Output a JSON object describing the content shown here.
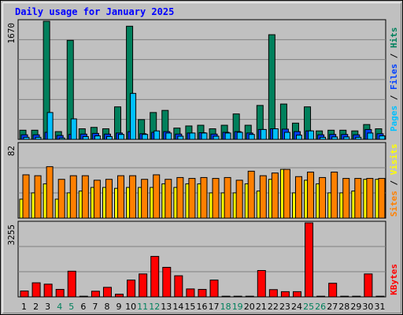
{
  "title": "Daily usage for January 2025",
  "colors": {
    "hits": "#00805c",
    "files": "#0040ff",
    "pages": "#00c0ff",
    "visits": "#ff8000",
    "sites": "#ffff00",
    "kbytes": "#ff0000",
    "title": "#0000ff",
    "grid": "#808080",
    "panel": "#c0c0c0",
    "weekend_day": "#00805c",
    "weekday_day": "#000000"
  },
  "side_labels": {
    "top": [
      {
        "text": "Pages",
        "color": "#00c0ff"
      },
      {
        "text": " / ",
        "color": "#000000"
      },
      {
        "text": "Files",
        "color": "#0040ff"
      },
      {
        "text": " / ",
        "color": "#000000"
      },
      {
        "text": "Hits",
        "color": "#00805c"
      }
    ],
    "middle": [
      {
        "text": "Sites",
        "color": "#ff8000"
      },
      {
        "text": " / ",
        "color": "#000000"
      },
      {
        "text": "Visits",
        "color": "#ffff00"
      }
    ],
    "bottom": [
      {
        "text": "KBytes",
        "color": "#ff0000"
      }
    ]
  },
  "chart_data": [
    {
      "type": "bar",
      "panel": "hits_files_pages",
      "ymax_label": "1670",
      "ylim": [
        0,
        1670
      ],
      "grid": true,
      "categories": [
        "1",
        "2",
        "3",
        "4",
        "5",
        "6",
        "7",
        "8",
        "9",
        "10",
        "11",
        "12",
        "13",
        "14",
        "15",
        "16",
        "17",
        "18",
        "19",
        "20",
        "21",
        "22",
        "23",
        "24",
        "25",
        "26",
        "27",
        "28",
        "29",
        "30",
        "31"
      ],
      "weekend_days": [
        4,
        5,
        11,
        12,
        18,
        19,
        25,
        26
      ],
      "series": [
        {
          "name": "Hits",
          "values": [
            130,
            130,
            1670,
            110,
            1400,
            150,
            170,
            150,
            460,
            1600,
            280,
            380,
            410,
            160,
            190,
            200,
            150,
            200,
            360,
            200,
            480,
            1480,
            500,
            230,
            460,
            120,
            130,
            130,
            120,
            210,
            150
          ]
        },
        {
          "name": "Files",
          "values": [
            65,
            65,
            100,
            55,
            70,
            75,
            85,
            75,
            90,
            110,
            80,
            100,
            110,
            75,
            90,
            95,
            75,
            100,
            110,
            90,
            140,
            150,
            145,
            110,
            120,
            65,
            70,
            70,
            65,
            140,
            80
          ]
        },
        {
          "name": "Pages",
          "values": [
            30,
            30,
            380,
            20,
            290,
            40,
            50,
            40,
            70,
            650,
            70,
            120,
            90,
            45,
            90,
            90,
            45,
            90,
            100,
            70,
            140,
            150,
            100,
            60,
            120,
            30,
            35,
            35,
            30,
            90,
            50
          ]
        }
      ]
    },
    {
      "type": "bar",
      "panel": "visits_sites",
      "ymax_label": "82",
      "ylim": [
        0,
        82
      ],
      "grid": true,
      "categories": [
        "1",
        "2",
        "3",
        "4",
        "5",
        "6",
        "7",
        "8",
        "9",
        "10",
        "11",
        "12",
        "13",
        "14",
        "15",
        "16",
        "17",
        "18",
        "19",
        "20",
        "21",
        "22",
        "23",
        "24",
        "25",
        "26",
        "27",
        "28",
        "29",
        "30",
        "31"
      ],
      "weekend_days": [
        4,
        5,
        11,
        12,
        18,
        19,
        25,
        26
      ],
      "series": [
        {
          "name": "Sites",
          "values": [
            48,
            47,
            57,
            43,
            47,
            47,
            42,
            43,
            47,
            47,
            43,
            48,
            43,
            45,
            44,
            45,
            44,
            45,
            42,
            52,
            47,
            50,
            54,
            46,
            51,
            45,
            51,
            44,
            44,
            44,
            44
          ]
        },
        {
          "name": "Visits",
          "values": [
            21,
            28,
            38,
            21,
            28,
            30,
            34,
            34,
            33,
            34,
            34,
            34,
            38,
            34,
            38,
            38,
            28,
            28,
            28,
            38,
            30,
            43,
            54,
            28,
            42,
            38,
            28,
            28,
            30,
            43,
            43
          ]
        }
      ]
    },
    {
      "type": "bar",
      "panel": "kbytes",
      "ymax_label": "3255",
      "ylim": [
        0,
        3255
      ],
      "grid": true,
      "categories": [
        "1",
        "2",
        "3",
        "4",
        "5",
        "6",
        "7",
        "8",
        "9",
        "10",
        "11",
        "12",
        "13",
        "14",
        "15",
        "16",
        "17",
        "18",
        "19",
        "20",
        "21",
        "22",
        "23",
        "24",
        "25",
        "26",
        "27",
        "28",
        "29",
        "30",
        "31"
      ],
      "weekend_days": [
        4,
        5,
        11,
        12,
        18,
        19,
        25,
        26
      ],
      "series": [
        {
          "name": "KBytes",
          "values": [
            260,
            620,
            560,
            330,
            1130,
            30,
            250,
            420,
            120,
            740,
            1010,
            1780,
            1300,
            930,
            350,
            330,
            740,
            30,
            30,
            30,
            1160,
            320,
            230,
            230,
            3255,
            30,
            600,
            30,
            30,
            1010,
            30
          ]
        }
      ]
    }
  ]
}
